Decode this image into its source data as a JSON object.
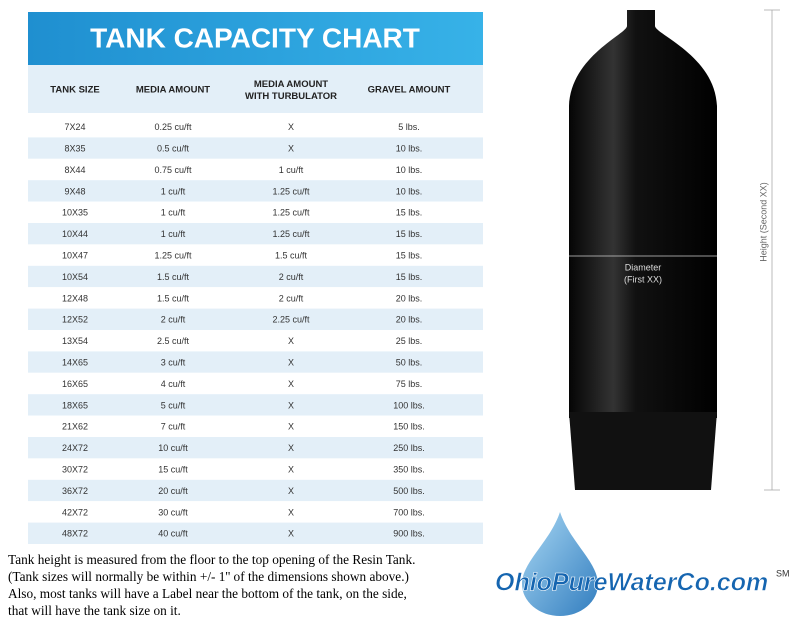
{
  "header": {
    "title": "TANK CAPACITY CHART"
  },
  "table": {
    "columns": [
      "TANK SIZE",
      "MEDIA AMOUNT",
      "MEDIA AMOUNT WITH TURBULATOR",
      "GRAVEL AMOUNT"
    ],
    "rows": [
      [
        "7X24",
        "0.25 cu/ft",
        "X",
        "5 lbs."
      ],
      [
        "8X35",
        "0.5 cu/ft",
        "X",
        "10 lbs."
      ],
      [
        "8X44",
        "0.75 cu/ft",
        "1 cu/ft",
        "10 lbs."
      ],
      [
        "9X48",
        "1 cu/ft",
        "1.25 cu/ft",
        "10 lbs."
      ],
      [
        "10X35",
        "1 cu/ft",
        "1.25 cu/ft",
        "15 lbs."
      ],
      [
        "10X44",
        "1 cu/ft",
        "1.25 cu/ft",
        "15 lbs."
      ],
      [
        "10X47",
        "1.25 cu/ft",
        "1.5 cu/ft",
        "15 lbs."
      ],
      [
        "10X54",
        "1.5 cu/ft",
        "2 cu/ft",
        "15 lbs."
      ],
      [
        "12X48",
        "1.5 cu/ft",
        "2 cu/ft",
        "20 lbs."
      ],
      [
        "12X52",
        "2 cu/ft",
        "2.25 cu/ft",
        "20 lbs."
      ],
      [
        "13X54",
        "2.5 cu/ft",
        "X",
        "25 lbs."
      ],
      [
        "14X65",
        "3 cu/ft",
        "X",
        "50 lbs."
      ],
      [
        "16X65",
        "4 cu/ft",
        "X",
        "75 lbs."
      ],
      [
        "18X65",
        "5 cu/ft",
        "X",
        "100 lbs."
      ],
      [
        "21X62",
        "7 cu/ft",
        "X",
        "150 lbs."
      ],
      [
        "24X72",
        "10 cu/ft",
        "X",
        "250 lbs."
      ],
      [
        "30X72",
        "15 cu/ft",
        "X",
        "350 lbs."
      ],
      [
        "36X72",
        "20 cu/ft",
        "X",
        "500 lbs."
      ],
      [
        "42X72",
        "30 cu/ft",
        "X",
        "700 lbs."
      ],
      [
        "48X72",
        "40 cu/ft",
        "X",
        "900 lbs."
      ]
    ]
  },
  "notes": [
    "Tank height is measured from the floor to the top opening of the Resin Tank.",
    "(Tank sizes will normally be within +/- 1'' of the dimensions shown above.)",
    "Also, most tanks will have a Label near the bottom of the tank, on the side,",
    "that will have the tank size on it."
  ],
  "tank": {
    "diameter_label": [
      "Diameter",
      "(First XX)"
    ],
    "height_label": "Height (Second XX)"
  },
  "logo": {
    "text": "OhioPureWaterCo.com",
    "mark": "SM"
  }
}
